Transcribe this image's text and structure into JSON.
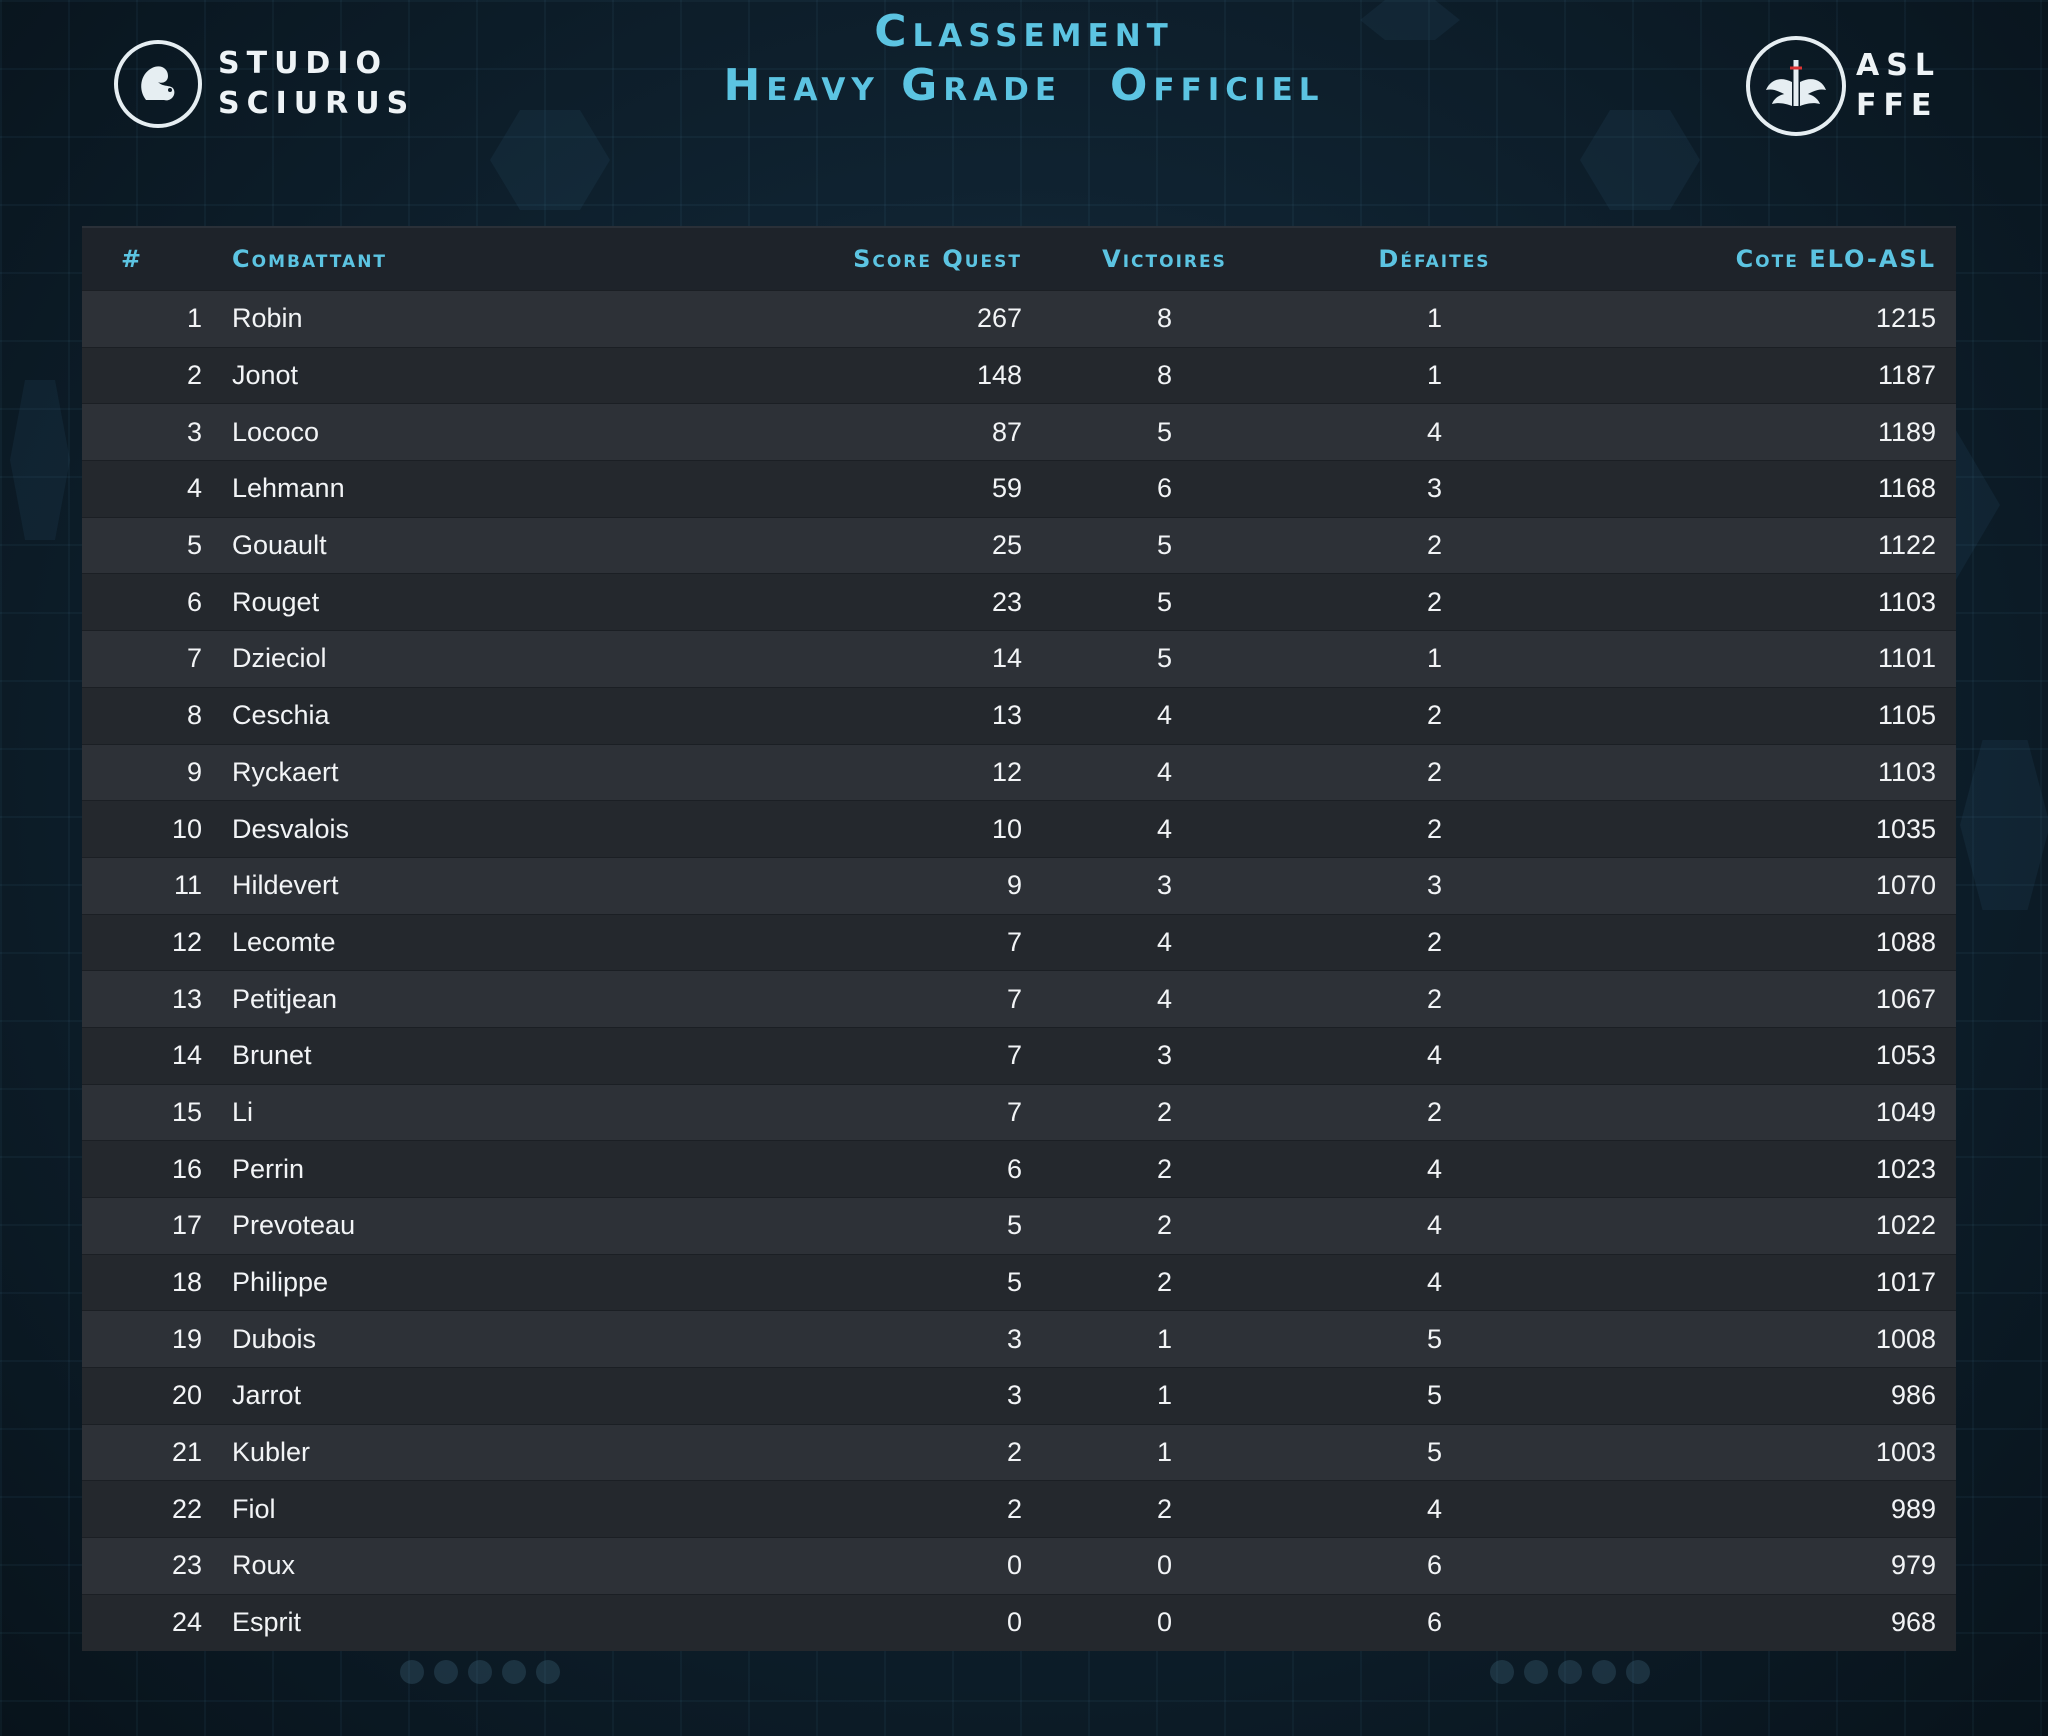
{
  "header": {
    "title_line1": "Classement",
    "title_line2_a": "Heavy Grade",
    "title_line2_b": "Officiel",
    "left_brand": {
      "line1": "STUDIO",
      "line2": "SCIURUS",
      "icon": "squirrel-logo-icon"
    },
    "right_brand": {
      "line1": "ASL",
      "line2": "FFE",
      "icon": "winged-emblem-icon"
    }
  },
  "table": {
    "columns": {
      "rank": "#",
      "name": "Combattant",
      "score": "Score Quest",
      "victories": "Victoires",
      "defeats": "Défaites",
      "elo": "Cote ELO-ASL"
    },
    "rows": [
      {
        "rank": "1",
        "name": "Robin",
        "score": "267",
        "victories": "8",
        "defeats": "1",
        "elo": "1215"
      },
      {
        "rank": "2",
        "name": "Jonot",
        "score": "148",
        "victories": "8",
        "defeats": "1",
        "elo": "1187"
      },
      {
        "rank": "3",
        "name": "Lococo",
        "score": "87",
        "victories": "5",
        "defeats": "4",
        "elo": "1189"
      },
      {
        "rank": "4",
        "name": "Lehmann",
        "score": "59",
        "victories": "6",
        "defeats": "3",
        "elo": "1168"
      },
      {
        "rank": "5",
        "name": "Gouault",
        "score": "25",
        "victories": "5",
        "defeats": "2",
        "elo": "1122"
      },
      {
        "rank": "6",
        "name": "Rouget",
        "score": "23",
        "victories": "5",
        "defeats": "2",
        "elo": "1103"
      },
      {
        "rank": "7",
        "name": "Dzieciol",
        "score": "14",
        "victories": "5",
        "defeats": "1",
        "elo": "1101"
      },
      {
        "rank": "8",
        "name": "Ceschia",
        "score": "13",
        "victories": "4",
        "defeats": "2",
        "elo": "1105"
      },
      {
        "rank": "9",
        "name": "Ryckaert",
        "score": "12",
        "victories": "4",
        "defeats": "2",
        "elo": "1103"
      },
      {
        "rank": "10",
        "name": "Desvalois",
        "score": "10",
        "victories": "4",
        "defeats": "2",
        "elo": "1035"
      },
      {
        "rank": "11",
        "name": "Hildevert",
        "score": "9",
        "victories": "3",
        "defeats": "3",
        "elo": "1070"
      },
      {
        "rank": "12",
        "name": "Lecomte",
        "score": "7",
        "victories": "4",
        "defeats": "2",
        "elo": "1088"
      },
      {
        "rank": "13",
        "name": "Petitjean",
        "score": "7",
        "victories": "4",
        "defeats": "2",
        "elo": "1067"
      },
      {
        "rank": "14",
        "name": "Brunet",
        "score": "7",
        "victories": "3",
        "defeats": "4",
        "elo": "1053"
      },
      {
        "rank": "15",
        "name": "Li",
        "score": "7",
        "victories": "2",
        "defeats": "2",
        "elo": "1049"
      },
      {
        "rank": "16",
        "name": "Perrin",
        "score": "6",
        "victories": "2",
        "defeats": "4",
        "elo": "1023"
      },
      {
        "rank": "17",
        "name": "Prevoteau",
        "score": "5",
        "victories": "2",
        "defeats": "4",
        "elo": "1022"
      },
      {
        "rank": "18",
        "name": "Philippe",
        "score": "5",
        "victories": "2",
        "defeats": "4",
        "elo": "1017"
      },
      {
        "rank": "19",
        "name": "Dubois",
        "score": "3",
        "victories": "1",
        "defeats": "5",
        "elo": "1008"
      },
      {
        "rank": "20",
        "name": "Jarrot",
        "score": "3",
        "victories": "1",
        "defeats": "5",
        "elo": "986"
      },
      {
        "rank": "21",
        "name": "Kubler",
        "score": "2",
        "victories": "1",
        "defeats": "5",
        "elo": "1003"
      },
      {
        "rank": "22",
        "name": "Fiol",
        "score": "2",
        "victories": "2",
        "defeats": "4",
        "elo": "989"
      },
      {
        "rank": "23",
        "name": "Roux",
        "score": "0",
        "victories": "0",
        "defeats": "6",
        "elo": "979"
      },
      {
        "rank": "24",
        "name": "Esprit",
        "score": "0",
        "victories": "0",
        "defeats": "6",
        "elo": "968"
      }
    ]
  },
  "colors": {
    "accent": "#5cc4e2",
    "row_odd": "#2d3137",
    "row_even": "#24282d",
    "header_bg": "#1e232a"
  }
}
